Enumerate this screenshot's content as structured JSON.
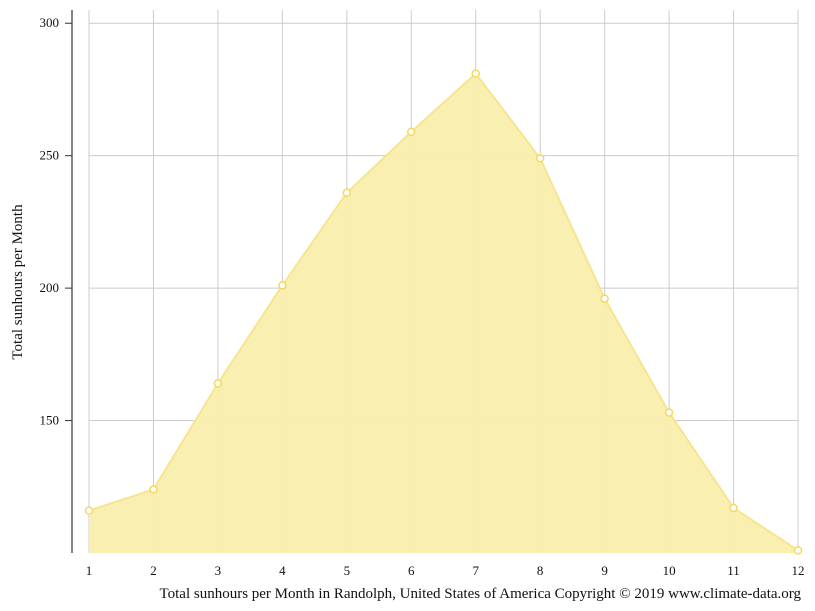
{
  "chart_data": {
    "type": "area",
    "x": [
      1,
      2,
      3,
      4,
      5,
      6,
      7,
      8,
      9,
      10,
      11,
      12
    ],
    "values": [
      116,
      124,
      164,
      201,
      236,
      259,
      281,
      249,
      196,
      153,
      117,
      101
    ],
    "ylabel": "Total sunhours per Month",
    "xlabel": "",
    "xlim": [
      1,
      12
    ],
    "ylim": [
      100,
      305
    ],
    "yticks": [
      150,
      200,
      250,
      300
    ],
    "xticks": [
      1,
      2,
      3,
      4,
      5,
      6,
      7,
      8,
      9,
      10,
      11,
      12
    ],
    "grid": true,
    "legend": "none",
    "caption": "Total sunhours per Month in Randolph, United States of America Copyright © 2019 www.climate-data.org",
    "colors": {
      "fill": "#f9eeac",
      "line": "#f7e48f",
      "marker": "#f5d85f",
      "grid": "#cccccc",
      "axis": "#333333"
    }
  }
}
